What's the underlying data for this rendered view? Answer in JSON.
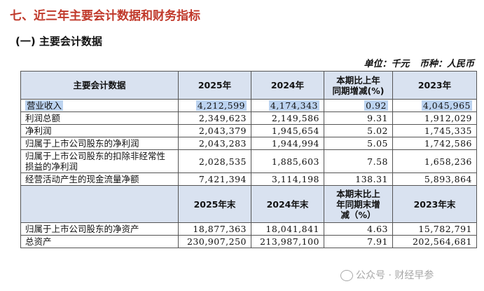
{
  "section_title": "七、近三年主要会计数据和财务指标",
  "sub_title": "(一) 主要会计数据",
  "unit": {
    "unit_label": "单位：千元",
    "currency_label": "币种：人民币"
  },
  "header1": {
    "col0": "主要会计数据",
    "col1": "2025年",
    "col2": "2024年",
    "col3_line1": "本期比上年",
    "col3_line2": "同期增减(%)",
    "col4": "2023年"
  },
  "rows1": [
    {
      "label": "营业收入",
      "v2025": "4,212,599",
      "v2024": "4,174,343",
      "change": "0.92",
      "v2023": "4,045,965"
    },
    {
      "label": "利润总额",
      "v2025": "2,349,623",
      "v2024": "2,149,586",
      "change": "9.31",
      "v2023": "1,912,029"
    },
    {
      "label": "净利润",
      "v2025": "2,043,379",
      "v2024": "1,945,654",
      "change": "5.02",
      "v2023": "1,745,335"
    },
    {
      "label": "归属于上市公司股东的净利润",
      "v2025": "2,043,283",
      "v2024": "1,944,994",
      "change": "5.05",
      "v2023": "1,742,586"
    },
    {
      "label": "归属于上市公司股东的扣除非经常性损益的净利润",
      "v2025": "2,028,535",
      "v2024": "1,885,603",
      "change": "7.58",
      "v2023": "1,658,236"
    },
    {
      "label": "经营活动产生的现金流量净额",
      "v2025": "7,421,394",
      "v2024": "3,114,198",
      "change": "138.31",
      "v2023": "5,893,864"
    }
  ],
  "header2": {
    "col1": "2025年末",
    "col2": "2024年末",
    "col3_line1": "本期末比上",
    "col3_line2": "年同期末增",
    "col3_line3": "减（%）",
    "col4": "2023年末"
  },
  "rows2": [
    {
      "label": "归属于上市公司股东的净资产",
      "v2025": "18,877,363",
      "v2024": "18,041,841",
      "change": "4.63",
      "v2023": "15,782,791"
    },
    {
      "label": "总资产",
      "v2025": "230,907,250",
      "v2024": "213,987,100",
      "change": "7.91",
      "v2023": "202,564,681"
    }
  ],
  "watermark": "公众号 · 财经早参"
}
